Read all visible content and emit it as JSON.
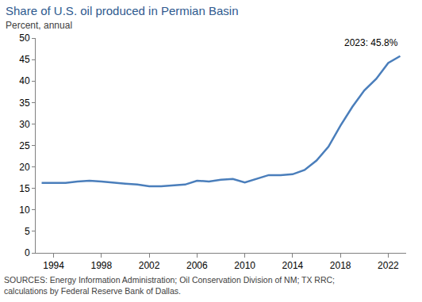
{
  "chart_data": {
    "type": "line",
    "title": "Share of U.S. oil produced in Permian Basin",
    "subtitle": "Percent, annual",
    "source": [
      "SOURCES: Energy Information Administration; Oil Conservation Division of NM; TX RRC;",
      "calculations by Federal Reserve Bank of Dallas."
    ],
    "x": [
      1993,
      1994,
      1995,
      1996,
      1997,
      1998,
      1999,
      2000,
      2001,
      2002,
      2003,
      2004,
      2005,
      2006,
      2007,
      2008,
      2009,
      2010,
      2011,
      2012,
      2013,
      2014,
      2015,
      2016,
      2017,
      2018,
      2019,
      2020,
      2021,
      2022,
      2023
    ],
    "values": [
      16.3,
      16.3,
      16.3,
      16.6,
      16.8,
      16.6,
      16.3,
      16.1,
      15.9,
      15.5,
      15.5,
      15.7,
      15.9,
      16.8,
      16.6,
      17.0,
      17.2,
      16.4,
      17.3,
      18.1,
      18.1,
      18.3,
      19.3,
      21.5,
      24.7,
      29.6,
      34.0,
      37.8,
      40.5,
      44.2,
      45.8
    ],
    "color": "#4a7ebb",
    "xlim": [
      1992.5,
      2023.5
    ],
    "xticks": [
      1994,
      1998,
      2002,
      2006,
      2010,
      2014,
      2018,
      2022
    ],
    "ylim": [
      0,
      50
    ],
    "yticks": [
      0,
      5,
      10,
      15,
      20,
      25,
      30,
      35,
      40,
      45,
      50
    ],
    "grid": false,
    "annotations": [
      {
        "x": 2023,
        "y": 45.8,
        "text": "2023: 45.8%"
      }
    ]
  }
}
